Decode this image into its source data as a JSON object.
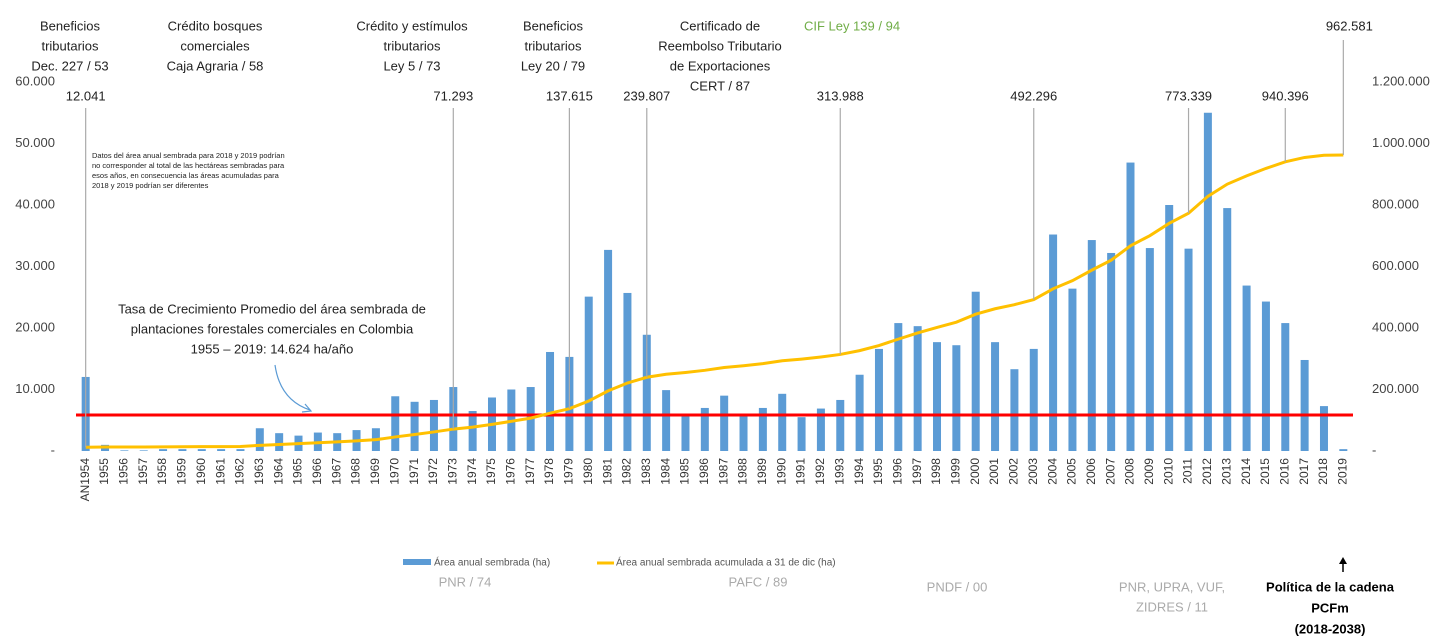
{
  "chart_data": {
    "type": "bar_line",
    "categories": [
      "AN1954",
      "1955",
      "1956",
      "1957",
      "1958",
      "1959",
      "1960",
      "1961",
      "1962",
      "1963",
      "1964",
      "1965",
      "1966",
      "1967",
      "1968",
      "1969",
      "1970",
      "1971",
      "1972",
      "1973",
      "1974",
      "1975",
      "1976",
      "1977",
      "1978",
      "1979",
      "1980",
      "1981",
      "1982",
      "1983",
      "1984",
      "1985",
      "1986",
      "1987",
      "1988",
      "1989",
      "1990",
      "1991",
      "1992",
      "1993",
      "1994",
      "1995",
      "1996",
      "1997",
      "1998",
      "1999",
      "2000",
      "2001",
      "2002",
      "2003",
      "2004",
      "2005",
      "2006",
      "2007",
      "2008",
      "2009",
      "2010",
      "2011",
      "2012",
      "2013",
      "2014",
      "2015",
      "2016",
      "2017",
      "2018",
      "2019"
    ],
    "series": [
      {
        "name": "Área anual sembrada (ha)",
        "color": "#5b9bd5",
        "axis": "y",
        "values": [
          12041,
          1000,
          100,
          100,
          300,
          300,
          300,
          300,
          300,
          3700,
          2900,
          2500,
          3000,
          2900,
          3400,
          3700,
          8900,
          8000,
          8300,
          10400,
          6500,
          8700,
          10000,
          10400,
          16100,
          15300,
          25100,
          32700,
          25700,
          18900,
          9900,
          5700,
          7000,
          9000,
          5700,
          7000,
          9300,
          5500,
          6900,
          8300,
          12400,
          16600,
          20800,
          20300,
          17700,
          17200,
          25900,
          17700,
          13300,
          16600,
          35200,
          26400,
          34300,
          32200,
          46900,
          33000,
          40000,
          32900,
          55000,
          39500,
          26900,
          24300,
          20800,
          14800,
          7300,
          300
        ]
      },
      {
        "name": "Área anual sembrada acumulada a 31 de dic (ha)",
        "color": "#ffc000",
        "axis": "y2",
        "values": [
          12041,
          13000,
          13100,
          13200,
          13500,
          13800,
          14100,
          14400,
          14700,
          18400,
          21300,
          23800,
          26800,
          29700,
          33100,
          36800,
          45700,
          53700,
          62000,
          71293,
          77800,
          86500,
          96500,
          106900,
          123000,
          137615,
          162700,
          195400,
          221100,
          239807,
          249700,
          255400,
          262400,
          271400,
          277100,
          284100,
          293400,
          298900,
          305800,
          313988,
          326400,
          343000,
          363800,
          384100,
          401800,
          419000,
          444900,
          462600,
          475900,
          492296,
          527500,
          553900,
          588200,
          620400,
          667300,
          700300,
          740300,
          773339,
          828300,
          867800,
          894700,
          919000,
          940396,
          954600,
          961900,
          962581
        ],
        "value_labels": [
          "12.041",
          null,
          null,
          null,
          null,
          null,
          null,
          null,
          null,
          null,
          null,
          null,
          null,
          null,
          null,
          null,
          null,
          null,
          null,
          "71.293",
          null,
          null,
          null,
          null,
          null,
          "137.615",
          null,
          null,
          null,
          "239.807",
          null,
          null,
          null,
          null,
          null,
          null,
          null,
          null,
          null,
          "313.988",
          null,
          null,
          null,
          null,
          null,
          null,
          null,
          null,
          null,
          "492.296",
          null,
          null,
          null,
          null,
          null,
          null,
          null,
          "773.339",
          null,
          null,
          null,
          null,
          "940.396",
          null,
          null,
          "962.581"
        ]
      }
    ],
    "ylim": [
      0,
      60000
    ],
    "yticks": [
      {
        "value": 0,
        "label": "-"
      },
      {
        "value": 10000,
        "label": "10.000"
      },
      {
        "value": 20000,
        "label": "20.000"
      },
      {
        "value": 30000,
        "label": "30.000"
      },
      {
        "value": 40000,
        "label": "40.000"
      },
      {
        "value": 50000,
        "label": "50.000"
      },
      {
        "value": 60000,
        "label": "60.000"
      }
    ],
    "y2lim": [
      0,
      1200000
    ],
    "y2ticks": [
      {
        "value": 0,
        "label": "-"
      },
      {
        "value": 200000,
        "label": "200.000"
      },
      {
        "value": 400000,
        "label": "400.000"
      },
      {
        "value": 600000,
        "label": "600.000"
      },
      {
        "value": 800000,
        "label": "800.000"
      },
      {
        "value": 1000000,
        "label": "1.000.000"
      },
      {
        "value": 1200000,
        "label": "1.200.000"
      }
    ],
    "average_line": {
      "value": 5850,
      "color": "#ff0000"
    },
    "annotations": [
      {
        "lines": [
          "Beneficios",
          "tributarios",
          "Dec. 227 / 53"
        ],
        "color": "#222222"
      },
      {
        "lines": [
          "Crédito bosques",
          "comerciales",
          "Caja Agraria / 58"
        ],
        "color": "#222222"
      },
      {
        "lines": [
          "Crédito y estímulos",
          "tributarios",
          "Ley 5 / 73"
        ],
        "color": "#222222"
      },
      {
        "lines": [
          "Beneficios",
          "tributarios",
          "Ley 20 / 79"
        ],
        "color": "#222222"
      },
      {
        "lines": [
          "Certificado de",
          "Reembolso Tributario",
          "de Exportaciones",
          "CERT / 87"
        ],
        "color": "#222222"
      },
      {
        "lines": [
          "CIF Ley 139 / 94"
        ],
        "color": "#70ad47"
      }
    ],
    "note": [
      "Datos del área  anual sembrada para 2018 y 2019 podrían",
      "no corresponder al total de las hectáreas sembradas para",
      "esos años, en consecuencia las áreas acumuladas para",
      "2018 y 2019 podrían ser diferentes"
    ],
    "growth_note": [
      "Tasa de Crecimiento Promedio del área sembrada de",
      "plantaciones forestales comerciales en Colombia",
      "1955 – 2019:   14.624 ha/año"
    ],
    "policies": [
      [
        "PNR / 74"
      ],
      [
        "PAFC / 89"
      ],
      [
        "PNDF / 00"
      ],
      [
        "PNR, UPRA, VUF,",
        "ZIDRES / 11"
      ]
    ],
    "current_policy": [
      "Política de la cadena",
      "PCFm",
      "(2018-2038)"
    ]
  }
}
